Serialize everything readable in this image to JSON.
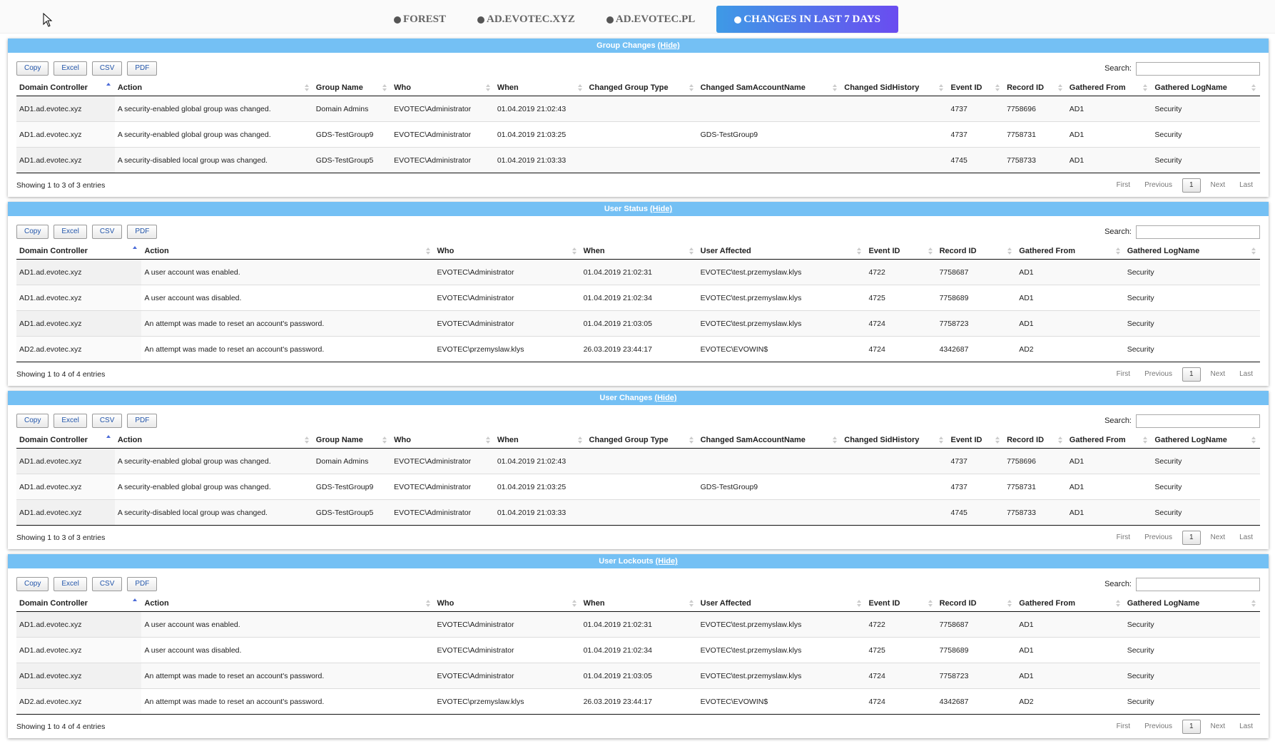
{
  "tabs": [
    "FOREST",
    "AD.EVOTEC.XYZ",
    "AD.EVOTEC.PL",
    "CHANGES IN LAST 7 DAYS"
  ],
  "active_tab": 3,
  "sections": [
    {
      "title": "Group Changes",
      "toggle": "(Hide)",
      "buttons": [
        "Copy",
        "Excel",
        "CSV",
        "PDF"
      ],
      "search_label": "Search:",
      "columns": [
        "Domain Controller",
        "Action",
        "Group Name",
        "Who",
        "When",
        "Changed Group Type",
        "Changed SamAccountName",
        "Changed SidHistory",
        "Event ID",
        "Record ID",
        "Gathered From",
        "Gathered LogName"
      ],
      "rows": [
        [
          "AD1.ad.evotec.xyz",
          "A security-enabled global group was changed.",
          "Domain Admins",
          "EVOTEC\\Administrator",
          "01.04.2019 21:02:43",
          null,
          null,
          null,
          "4737",
          "7758696",
          "AD1",
          "Security"
        ],
        [
          "AD1.ad.evotec.xyz",
          "A security-enabled global group was changed.",
          "GDS-TestGroup9",
          "EVOTEC\\Administrator",
          "01.04.2019 21:03:25",
          null,
          "GDS-TestGroup9",
          null,
          "4737",
          "7758731",
          "AD1",
          "Security"
        ],
        [
          "AD1.ad.evotec.xyz",
          "A security-disabled local group was changed.",
          "GDS-TestGroup5",
          "EVOTEC\\Administrator",
          "01.04.2019 21:03:33",
          null,
          null,
          null,
          "4745",
          "7758733",
          "AD1",
          "Security"
        ]
      ],
      "info": "Showing 1 to 3 of 3 entries",
      "pager": [
        "First",
        "Previous",
        1,
        "Next",
        "Last"
      ]
    },
    {
      "title": "User Status",
      "toggle": "(Hide)",
      "buttons": [
        "Copy",
        "Excel",
        "CSV",
        "PDF"
      ],
      "search_label": "Search:",
      "columns": [
        "Domain Controller",
        "Action",
        "Who",
        "When",
        "User Affected",
        "Event ID",
        "Record ID",
        "Gathered From",
        "Gathered LogName"
      ],
      "rows": [
        [
          "AD1.ad.evotec.xyz",
          "A user account was enabled.",
          "EVOTEC\\Administrator",
          "01.04.2019 21:02:31",
          "EVOTEC\\test.przemyslaw.klys",
          "4722",
          "7758687",
          "AD1",
          "Security"
        ],
        [
          "AD1.ad.evotec.xyz",
          "A user account was disabled.",
          "EVOTEC\\Administrator",
          "01.04.2019 21:02:34",
          "EVOTEC\\test.przemyslaw.klys",
          "4725",
          "7758689",
          "AD1",
          "Security"
        ],
        [
          "AD1.ad.evotec.xyz",
          "An attempt was made to reset an account's password.",
          "EVOTEC\\Administrator",
          "01.04.2019 21:03:05",
          "EVOTEC\\test.przemyslaw.klys",
          "4724",
          "7758723",
          "AD1",
          "Security"
        ],
        [
          "AD2.ad.evotec.xyz",
          "An attempt was made to reset an account's password.",
          "EVOTEC\\przemyslaw.klys",
          "26.03.2019 23:44:17",
          "EVOTEC\\EVOWIN$",
          "4724",
          "4342687",
          "AD2",
          "Security"
        ]
      ],
      "info": "Showing 1 to 4 of 4 entries",
      "pager": [
        "First",
        "Previous",
        1,
        "Next",
        "Last"
      ]
    },
    {
      "title": "User Changes",
      "toggle": "(Hide)",
      "buttons": [
        "Copy",
        "Excel",
        "CSV",
        "PDF"
      ],
      "search_label": "Search:",
      "columns": [
        "Domain Controller",
        "Action",
        "Group Name",
        "Who",
        "When",
        "Changed Group Type",
        "Changed SamAccountName",
        "Changed SidHistory",
        "Event ID",
        "Record ID",
        "Gathered From",
        "Gathered LogName"
      ],
      "rows": [
        [
          "AD1.ad.evotec.xyz",
          "A security-enabled global group was changed.",
          "Domain Admins",
          "EVOTEC\\Administrator",
          "01.04.2019 21:02:43",
          null,
          null,
          null,
          "4737",
          "7758696",
          "AD1",
          "Security"
        ],
        [
          "AD1.ad.evotec.xyz",
          "A security-enabled global group was changed.",
          "GDS-TestGroup9",
          "EVOTEC\\Administrator",
          "01.04.2019 21:03:25",
          null,
          "GDS-TestGroup9",
          null,
          "4737",
          "7758731",
          "AD1",
          "Security"
        ],
        [
          "AD1.ad.evotec.xyz",
          "A security-disabled local group was changed.",
          "GDS-TestGroup5",
          "EVOTEC\\Administrator",
          "01.04.2019 21:03:33",
          null,
          null,
          null,
          "4745",
          "7758733",
          "AD1",
          "Security"
        ]
      ],
      "info": "Showing 1 to 3 of 3 entries",
      "pager": [
        "First",
        "Previous",
        1,
        "Next",
        "Last"
      ]
    },
    {
      "title": "User Lockouts",
      "toggle": "(Hide)",
      "buttons": [
        "Copy",
        "Excel",
        "CSV",
        "PDF"
      ],
      "search_label": "Search:",
      "columns": [
        "Domain Controller",
        "Action",
        "Who",
        "When",
        "User Affected",
        "Event ID",
        "Record ID",
        "Gathered From",
        "Gathered LogName"
      ],
      "rows": [
        [
          "AD1.ad.evotec.xyz",
          "A user account was enabled.",
          "EVOTEC\\Administrator",
          "01.04.2019 21:02:31",
          "EVOTEC\\test.przemyslaw.klys",
          "4722",
          "7758687",
          "AD1",
          "Security"
        ],
        [
          "AD1.ad.evotec.xyz",
          "A user account was disabled.",
          "EVOTEC\\Administrator",
          "01.04.2019 21:02:34",
          "EVOTEC\\test.przemyslaw.klys",
          "4725",
          "7758689",
          "AD1",
          "Security"
        ],
        [
          "AD1.ad.evotec.xyz",
          "An attempt was made to reset an account's password.",
          "EVOTEC\\Administrator",
          "01.04.2019 21:03:05",
          "EVOTEC\\test.przemyslaw.klys",
          "4724",
          "7758723",
          "AD1",
          "Security"
        ],
        [
          "AD2.ad.evotec.xyz",
          "An attempt was made to reset an account's password.",
          "EVOTEC\\przemyslaw.klys",
          "26.03.2019 23:44:17",
          "EVOTEC\\EVOWIN$",
          "4724",
          "4342687",
          "AD2",
          "Security"
        ]
      ],
      "info": "Showing 1 to 4 of 4 entries",
      "pager": [
        "First",
        "Previous",
        1,
        "Next",
        "Last"
      ]
    }
  ]
}
